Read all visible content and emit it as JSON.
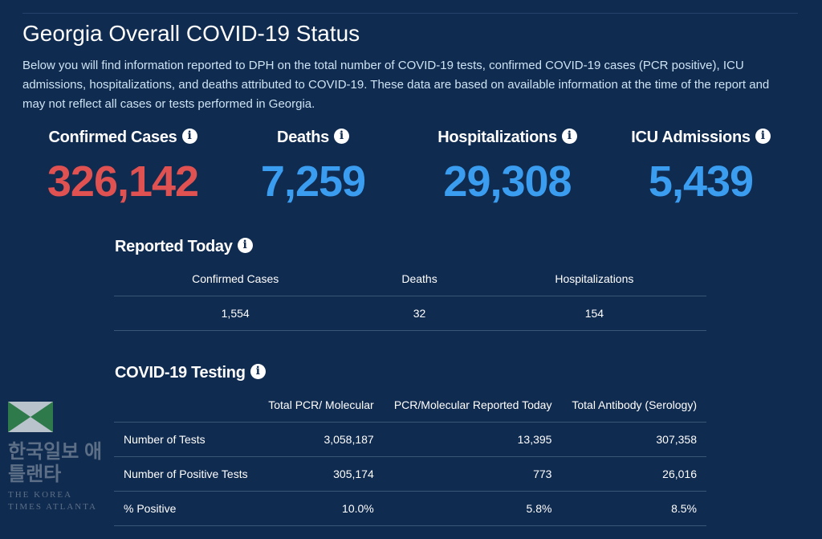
{
  "title": "Georgia Overall COVID-19 Status",
  "description": "Below you will find information reported to DPH on the total number of COVID-19 tests, confirmed COVID-19 cases (PCR positive), ICU admissions, hospitalizations, and deaths attributed to COVID-19. These data are based on available information at the time of the report and may not reflect all cases or tests performed in Georgia.",
  "stats": [
    {
      "label": "Confirmed Cases",
      "value": "326,142",
      "color": "#e05252"
    },
    {
      "label": "Deaths",
      "value": "7,259",
      "color": "#3b9df0"
    },
    {
      "label": "Hospitalizations",
      "value": "29,308",
      "color": "#3b9df0"
    },
    {
      "label": "ICU Admissions",
      "value": "5,439",
      "color": "#3b9df0"
    }
  ],
  "reported_today": {
    "title": "Reported Today",
    "headers": [
      "Confirmed Cases",
      "Deaths",
      "Hospitalizations"
    ],
    "values": [
      "1,554",
      "32",
      "154"
    ]
  },
  "testing": {
    "title": "COVID-19 Testing",
    "headers": [
      "",
      "Total PCR/ Molecular",
      "PCR/Molecular Reported Today",
      "Total Antibody (Serology)"
    ],
    "rows": [
      [
        "Number of Tests",
        "3,058,187",
        "13,395",
        "307,358"
      ],
      [
        "Number of Positive Tests",
        "305,174",
        "773",
        "26,016"
      ],
      [
        "% Positive",
        "10.0%",
        "5.8%",
        "8.5%"
      ]
    ]
  },
  "info_icon": "i",
  "watermark": {
    "korean": "한국일보 애틀랜타",
    "english": "THE KOREA TIMES ATLANTA"
  }
}
